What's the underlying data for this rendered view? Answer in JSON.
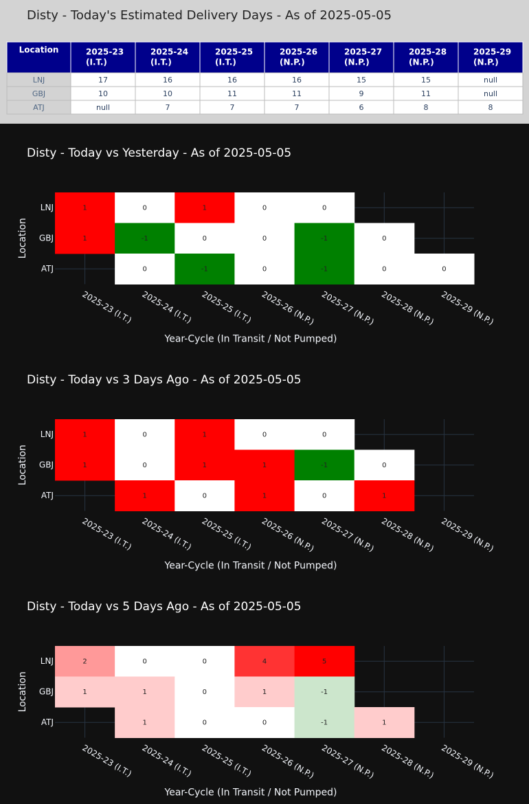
{
  "table": {
    "title": "Disty - Today's Estimated Delivery Days - As of 2025-05-05",
    "header": [
      "Location",
      [
        "2025-23",
        "(I.T.)"
      ],
      [
        "2025-24",
        "(I.T.)"
      ],
      [
        "2025-25",
        "(I.T.)"
      ],
      [
        "2025-26",
        "(N.P.)"
      ],
      [
        "2025-27",
        "(N.P.)"
      ],
      [
        "2025-28",
        "(N.P.)"
      ],
      [
        "2025-29",
        "(N.P.)"
      ]
    ],
    "rows": [
      [
        "LNJ",
        17,
        16,
        16,
        16,
        15,
        15,
        "null"
      ],
      [
        "GBJ",
        10,
        10,
        11,
        11,
        9,
        11,
        "null"
      ],
      [
        "ATJ",
        "null",
        7,
        7,
        7,
        6,
        8,
        8
      ]
    ]
  },
  "chart_data": [
    {
      "type": "heatmap",
      "title": "Disty - Today vs Yesterday - As of 2025-05-05",
      "x_label": "Year-Cycle (In Transit / Not Pumped)",
      "y_label": "Location",
      "categories": [
        "2025-23 (I.T.)",
        "2025-24 (I.T.)",
        "2025-25 (I.T.)",
        "2025-26 (N.P.)",
        "2025-27 (N.P.)",
        "2025-28 (N.P.)",
        "2025-29 (N.P.)"
      ],
      "y_categories": [
        "LNJ",
        "GBJ",
        "ATJ"
      ],
      "z": [
        [
          1,
          0,
          1,
          0,
          0,
          null,
          null
        ],
        [
          1,
          -1,
          0,
          0,
          -1,
          0,
          null
        ],
        [
          null,
          0,
          -1,
          0,
          -1,
          0,
          0
        ]
      ],
      "positive_color": "#ff0000",
      "negative_color": "#008000",
      "zero_color": "#ffffff",
      "grid": true
    },
    {
      "type": "heatmap",
      "title": "Disty - Today vs 3 Days Ago - As of 2025-05-05",
      "x_label": "Year-Cycle (In Transit / Not Pumped)",
      "y_label": "Location",
      "categories": [
        "2025-23 (I.T.)",
        "2025-24 (I.T.)",
        "2025-25 (I.T.)",
        "2025-26 (N.P.)",
        "2025-27 (N.P.)",
        "2025-28 (N.P.)",
        "2025-29 (N.P.)"
      ],
      "y_categories": [
        "LNJ",
        "GBJ",
        "ATJ"
      ],
      "z": [
        [
          1,
          0,
          1,
          0,
          0,
          null,
          null
        ],
        [
          1,
          0,
          1,
          1,
          -1,
          0,
          null
        ],
        [
          null,
          1,
          0,
          1,
          0,
          1,
          null
        ]
      ],
      "positive_color": "#ff0000",
      "negative_color": "#008000",
      "zero_color": "#ffffff",
      "grid": true
    },
    {
      "type": "heatmap",
      "title": "Disty - Today vs 5 Days Ago - As of 2025-05-05",
      "x_label": "Year-Cycle (In Transit / Not Pumped)",
      "y_label": "Location",
      "categories": [
        "2025-23 (I.T.)",
        "2025-24 (I.T.)",
        "2025-25 (I.T.)",
        "2025-26 (N.P.)",
        "2025-27 (N.P.)",
        "2025-28 (N.P.)",
        "2025-29 (N.P.)"
      ],
      "y_categories": [
        "LNJ",
        "GBJ",
        "ATJ"
      ],
      "z": [
        [
          2,
          0,
          0,
          4,
          5,
          null,
          null
        ],
        [
          1,
          1,
          0,
          1,
          -1,
          null,
          null
        ],
        [
          null,
          1,
          0,
          0,
          -1,
          1,
          null
        ]
      ],
      "positive_color": "#ff0000",
      "negative_color": "#008000",
      "zero_color": "#ffffff",
      "grid": true
    }
  ]
}
